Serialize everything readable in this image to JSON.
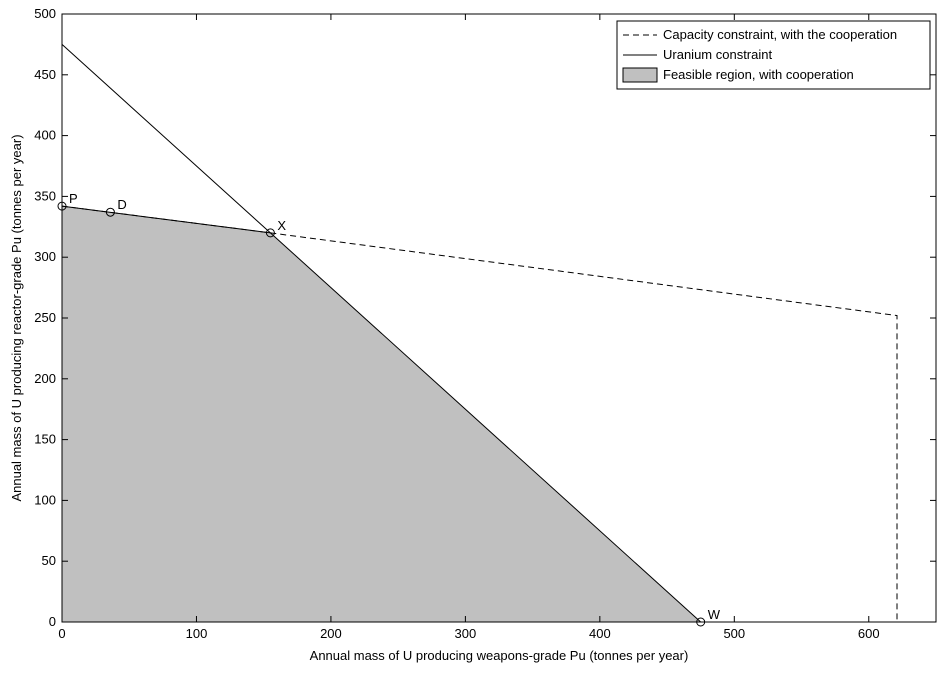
{
  "chart_data": {
    "type": "line",
    "xlabel": "Annual mass of U producing weapons-grade Pu (tonnes per year)",
    "ylabel": "Annual mass of U producing reactor-grade Pu (tonnes per year)",
    "xlim": [
      0,
      650
    ],
    "ylim": [
      0,
      500
    ],
    "xticks": [
      0,
      100,
      200,
      300,
      400,
      500,
      600
    ],
    "yticks": [
      0,
      50,
      100,
      150,
      200,
      250,
      300,
      350,
      400,
      450,
      500
    ],
    "grid": false,
    "legend_position": "top-right",
    "legend": [
      {
        "label": "Capacity constraint, with the cooperation",
        "style": "dashed-line"
      },
      {
        "label": "Uranium constraint",
        "style": "solid-line"
      },
      {
        "label": "Feasible region, with cooperation",
        "style": "filled-patch"
      }
    ],
    "series": [
      {
        "name": "Capacity constraint, with the cooperation",
        "style": "dashed",
        "x": [
          0,
          155,
          621,
          621
        ],
        "y": [
          342,
          320,
          252,
          0
        ]
      },
      {
        "name": "Uranium constraint",
        "style": "solid",
        "x": [
          0,
          475
        ],
        "y": [
          475,
          0
        ]
      },
      {
        "name": "Feasible region, with cooperation",
        "style": "area",
        "x": [
          0,
          0,
          155,
          475
        ],
        "y": [
          0,
          342,
          320,
          0
        ]
      }
    ],
    "annotations": [
      {
        "label": "P",
        "x": 0,
        "y": 342
      },
      {
        "label": "D",
        "x": 36,
        "y": 337
      },
      {
        "label": "X",
        "x": 155,
        "y": 320
      },
      {
        "label": "W",
        "x": 475,
        "y": 0
      }
    ],
    "colors": {
      "fill": "#c0c0c0",
      "line": "#000000",
      "background": "#ffffff"
    }
  }
}
